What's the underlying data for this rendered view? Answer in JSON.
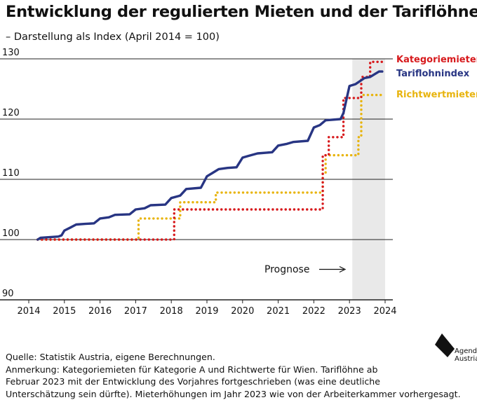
{
  "header": {
    "title": "Entwicklung der regulierten Mieten und der Tariflöhne",
    "subtitle": "– Darstellung als Index (April 2014 = 100)"
  },
  "annotation": {
    "text": "Prognose"
  },
  "footer": {
    "source": "Quelle: Statistik Austria, eigene Berechnungen.",
    "note_lines": [
      "Anmerkung: Kategoriemieten für Kategorie A und Richtwerte für Wien. Tariflöhne ab",
      "Februar 2023 mit der Entwicklung des Vorjahres fortgeschrieben (was eine deutliche",
      "Unterschätzung sein dürfte). Mieterhöhungen im Jahr 2023 wie von der Arbeiterkammer vorhergesagt."
    ]
  },
  "logo": {
    "line1": "Agenda",
    "line2": "Austria"
  },
  "colors": {
    "kategoriemieten": "#d7191c",
    "tariflohnindex": "#283583",
    "richtwertmieten": "#e8b40e",
    "forecast_band": "#e9e9e9",
    "gridline": "#222222"
  },
  "chart_data": {
    "type": "line",
    "title": "Entwicklung der regulierten Mieten und der Tariflöhne",
    "subtitle": "– Darstellung als Index (April 2014 = 100)",
    "xlabel": "",
    "ylabel": "",
    "xlim": [
      2014,
      2024
    ],
    "ylim": [
      90,
      130
    ],
    "x_ticks": [
      2014,
      2015,
      2016,
      2017,
      2018,
      2019,
      2020,
      2021,
      2022,
      2023,
      2024
    ],
    "y_ticks": [
      90,
      100,
      110,
      120,
      130
    ],
    "grid": "horizontal",
    "legend_position": "right, at line ends",
    "forecast_band": {
      "x_start": 2023.08,
      "x_end": 2024,
      "label": "Prognose"
    },
    "series": [
      {
        "name": "Kategoriemieten",
        "style": "dotted",
        "step": true,
        "points": [
          [
            2014.25,
            100
          ],
          [
            2018.08,
            100
          ],
          [
            2018.08,
            105
          ],
          [
            2022.25,
            105
          ],
          [
            2022.25,
            114
          ],
          [
            2022.42,
            114
          ],
          [
            2022.42,
            117
          ],
          [
            2022.83,
            117
          ],
          [
            2022.83,
            123.5
          ],
          [
            2023.33,
            123.5
          ],
          [
            2023.33,
            127
          ],
          [
            2023.58,
            127
          ],
          [
            2023.58,
            129.5
          ],
          [
            2023.92,
            129.5
          ]
        ]
      },
      {
        "name": "Tariflohnindex",
        "style": "solid",
        "step": true,
        "points": [
          [
            2014.25,
            100
          ],
          [
            2014.33,
            100.3
          ],
          [
            2014.58,
            100.4
          ],
          [
            2014.83,
            100.5
          ],
          [
            2014.92,
            100.7
          ],
          [
            2015.0,
            101.5
          ],
          [
            2015.17,
            102.0
          ],
          [
            2015.33,
            102.5
          ],
          [
            2015.58,
            102.6
          ],
          [
            2015.83,
            102.7
          ],
          [
            2016.0,
            103.5
          ],
          [
            2016.25,
            103.7
          ],
          [
            2016.42,
            104.1
          ],
          [
            2016.83,
            104.2
          ],
          [
            2017.0,
            105.0
          ],
          [
            2017.25,
            105.2
          ],
          [
            2017.42,
            105.7
          ],
          [
            2017.83,
            105.8
          ],
          [
            2018.0,
            106.9
          ],
          [
            2018.25,
            107.3
          ],
          [
            2018.42,
            108.4
          ],
          [
            2018.83,
            108.6
          ],
          [
            2019.0,
            110.5
          ],
          [
            2019.17,
            111.1
          ],
          [
            2019.33,
            111.7
          ],
          [
            2019.58,
            111.9
          ],
          [
            2019.83,
            112.0
          ],
          [
            2020.0,
            113.6
          ],
          [
            2020.17,
            113.9
          ],
          [
            2020.42,
            114.3
          ],
          [
            2020.83,
            114.5
          ],
          [
            2021.0,
            115.6
          ],
          [
            2021.25,
            115.9
          ],
          [
            2021.42,
            116.2
          ],
          [
            2021.83,
            116.4
          ],
          [
            2022.0,
            118.6
          ],
          [
            2022.17,
            119.0
          ],
          [
            2022.33,
            119.8
          ],
          [
            2022.75,
            120.0
          ],
          [
            2022.83,
            121.0
          ],
          [
            2023.0,
            125.5
          ],
          [
            2023.17,
            125.8
          ],
          [
            2023.42,
            126.8
          ],
          [
            2023.58,
            127.0
          ],
          [
            2023.83,
            127.9
          ],
          [
            2023.92,
            127.9
          ]
        ]
      },
      {
        "name": "Richtwertmieten",
        "style": "dotted",
        "step": true,
        "points": [
          [
            2014.25,
            100
          ],
          [
            2017.08,
            100
          ],
          [
            2017.08,
            103.5
          ],
          [
            2018.25,
            103.5
          ],
          [
            2018.25,
            106.2
          ],
          [
            2019.25,
            106.2
          ],
          [
            2019.25,
            107.8
          ],
          [
            2022.25,
            107.8
          ],
          [
            2022.25,
            111.0
          ],
          [
            2022.33,
            111.0
          ],
          [
            2022.33,
            114.0
          ],
          [
            2023.25,
            114.0
          ],
          [
            2023.25,
            117.0
          ],
          [
            2023.33,
            117.0
          ],
          [
            2023.33,
            124.0
          ],
          [
            2023.92,
            124.0
          ]
        ]
      }
    ]
  }
}
